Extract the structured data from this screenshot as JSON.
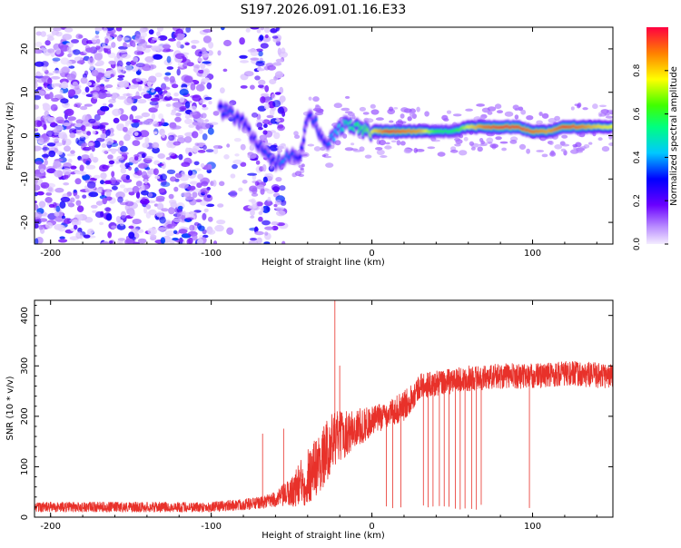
{
  "title": "S197.2026.091.01.16.E33",
  "chart_data": [
    {
      "type": "heatmap",
      "xlabel": "Height of straight line (km)",
      "ylabel": "Frequency (Hz)",
      "xlim": [
        -210,
        150
      ],
      "ylim": [
        -25,
        25
      ],
      "xticks": [
        -200,
        -100,
        0,
        100
      ],
      "yticks": [
        -20,
        -10,
        0,
        10,
        20
      ],
      "colorbar": {
        "label": "Normalized spectral amplitude",
        "range": [
          0,
          1
        ],
        "ticks": [
          "0.0",
          "0.2",
          "0.4",
          "0.6",
          "0.8"
        ]
      },
      "ridge": {
        "x": [
          -95,
          -88,
          -80,
          -75,
          -70,
          -65,
          -60,
          -55,
          -50,
          -45,
          -40,
          -35,
          -30,
          -25,
          -20,
          -15,
          -10,
          -5,
          0,
          10,
          20,
          30,
          40,
          50,
          60,
          70,
          80,
          90,
          100,
          110,
          120,
          130,
          140,
          150
        ],
        "freq": [
          6,
          5,
          3,
          0,
          -2,
          -5,
          -7,
          -5,
          -4,
          -6,
          4,
          3,
          -2,
          -1,
          2,
          3,
          2,
          1,
          1,
          1,
          1,
          1,
          1,
          1,
          2,
          2,
          2,
          2,
          1,
          1,
          2,
          2,
          2,
          2
        ],
        "amplitude": [
          0.3,
          0.35,
          0.3,
          0.25,
          0.3,
          0.35,
          0.3,
          0.4,
          0.35,
          0.3,
          0.3,
          0.35,
          0.3,
          0.4,
          0.45,
          0.5,
          0.55,
          0.6,
          0.75,
          0.95,
          0.9,
          0.85,
          0.6,
          0.55,
          0.75,
          0.9,
          0.95,
          0.95,
          0.9,
          0.85,
          0.95,
          0.9,
          0.8,
          0.75
        ]
      }
    },
    {
      "type": "line",
      "xlabel": "Height of straight line (km)",
      "ylabel": "SNR (10 * v/v)",
      "xlim": [
        -210,
        150
      ],
      "ylim": [
        0,
        430
      ],
      "xticks": [
        -200,
        -100,
        0,
        100
      ],
      "yticks": [
        0,
        100,
        200,
        300,
        400
      ],
      "color": "#e8312a",
      "series": [
        {
          "name": "SNR",
          "x": [
            -210,
            -150,
            -100,
            -70,
            -60,
            -50,
            -40,
            -30,
            -25,
            -20,
            -10,
            0,
            10,
            20,
            30,
            40,
            60,
            80,
            100,
            120,
            150
          ],
          "mean": [
            20,
            20,
            20,
            28,
            35,
            50,
            80,
            120,
            150,
            160,
            175,
            190,
            205,
            220,
            260,
            265,
            275,
            280,
            280,
            285,
            280
          ],
          "spread": [
            10,
            10,
            10,
            12,
            15,
            30,
            60,
            60,
            60,
            50,
            40,
            30,
            25,
            30,
            25,
            25,
            25,
            25,
            25,
            25,
            25
          ]
        }
      ],
      "spikes": [
        {
          "x": -68,
          "y": 165
        },
        {
          "x": -55,
          "y": 175
        },
        {
          "x": -23,
          "y": 430
        },
        {
          "x": -20,
          "y": 300
        },
        {
          "x": 98,
          "y": 30
        }
      ],
      "dropouts": [
        9,
        13,
        18,
        32,
        35,
        38,
        42,
        45,
        48,
        52,
        55,
        58,
        62,
        65,
        68,
        98
      ]
    }
  ]
}
